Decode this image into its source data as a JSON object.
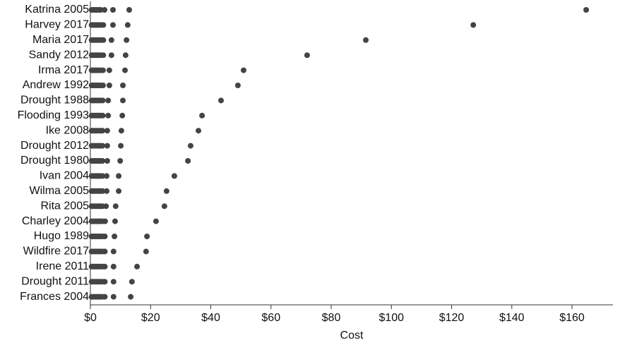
{
  "chart_data": {
    "type": "strip",
    "x_label": "Cost",
    "color": "#444444",
    "categories": [
      "Katrina 2005",
      "Harvey 2017",
      "Maria 2017",
      "Sandy 2012",
      "Irma 2017",
      "Andrew 1992",
      "Drought 1988",
      "Flooding 1993",
      "Ike 2008",
      "Drought 2012",
      "Drought 1980",
      "Ivan 2004",
      "Wilma 2005",
      "Rita 2005",
      "Charley 2004",
      "Hugo 1989",
      "Wildfire 2017",
      "Irene 2011",
      "Drought 2011",
      "Frances 2004"
    ],
    "values": [
      [
        0.4,
        0.9,
        1.4,
        1.9,
        2.4,
        2.9,
        3.4,
        4.7,
        7.5,
        12.9,
        164.7
      ],
      [
        0.4,
        0.9,
        1.4,
        1.9,
        2.4,
        2.9,
        3.4,
        4.3,
        7.5,
        12.4,
        127.2
      ],
      [
        0.4,
        0.9,
        1.4,
        1.9,
        2.4,
        2.9,
        3.4,
        4.3,
        7.0,
        12.0,
        91.5
      ],
      [
        0.4,
        0.9,
        1.4,
        1.9,
        2.4,
        2.9,
        3.4,
        4.3,
        7.0,
        11.7,
        72.0
      ],
      [
        0.4,
        0.9,
        1.4,
        1.9,
        2.4,
        2.9,
        3.4,
        4.2,
        6.3,
        11.5,
        50.9
      ],
      [
        0.4,
        0.9,
        1.4,
        1.9,
        2.4,
        2.9,
        3.4,
        4.2,
        6.3,
        10.8,
        49.0
      ],
      [
        0.4,
        0.9,
        1.4,
        1.9,
        2.4,
        2.9,
        3.4,
        4.1,
        5.9,
        10.8,
        43.4
      ],
      [
        0.4,
        0.9,
        1.4,
        1.9,
        2.4,
        2.9,
        3.4,
        4.1,
        5.9,
        10.6,
        37.1
      ],
      [
        0.4,
        0.9,
        1.4,
        1.9,
        2.4,
        2.9,
        3.4,
        4.0,
        5.6,
        10.3,
        35.9
      ],
      [
        0.4,
        0.9,
        1.4,
        1.9,
        2.4,
        2.9,
        3.4,
        4.0,
        5.6,
        10.1,
        33.3
      ],
      [
        0.4,
        0.9,
        1.4,
        1.9,
        2.4,
        2.9,
        3.4,
        4.0,
        5.6,
        9.9,
        32.4
      ],
      [
        0.4,
        0.9,
        1.4,
        1.9,
        2.4,
        2.9,
        3.4,
        4.0,
        5.4,
        9.4,
        27.9
      ],
      [
        0.4,
        0.9,
        1.4,
        1.9,
        2.4,
        2.9,
        3.4,
        4.0,
        5.4,
        9.4,
        25.3
      ],
      [
        0.4,
        0.9,
        1.4,
        1.9,
        2.4,
        2.9,
        3.4,
        4.0,
        5.2,
        8.4,
        24.6
      ],
      [
        0.4,
        0.9,
        1.4,
        1.9,
        2.4,
        2.9,
        3.4,
        4.0,
        4.9,
        8.2,
        21.8
      ],
      [
        0.4,
        0.9,
        1.4,
        1.9,
        2.4,
        2.9,
        3.4,
        4.0,
        4.8,
        8.0,
        18.8
      ],
      [
        0.4,
        0.9,
        1.4,
        1.9,
        2.4,
        2.9,
        3.4,
        4.0,
        4.8,
        7.7,
        18.5
      ],
      [
        0.4,
        0.9,
        1.4,
        1.9,
        2.4,
        2.9,
        3.4,
        4.0,
        4.8,
        7.7,
        15.5
      ],
      [
        0.4,
        0.9,
        1.4,
        1.9,
        2.4,
        2.9,
        3.4,
        4.0,
        4.8,
        7.7,
        13.8
      ],
      [
        0.4,
        0.9,
        1.4,
        1.9,
        2.4,
        2.9,
        3.4,
        4.0,
        4.8,
        7.7,
        13.4
      ]
    ],
    "xlim": [
      0,
      173.6
    ],
    "xticks": [
      {
        "value": 0,
        "label": "$0"
      },
      {
        "value": 20,
        "label": "$20"
      },
      {
        "value": 40,
        "label": "$40"
      },
      {
        "value": 60,
        "label": "$60"
      },
      {
        "value": 80,
        "label": "$80"
      },
      {
        "value": 100,
        "label": "$100"
      },
      {
        "value": 120,
        "label": "$120"
      },
      {
        "value": 140,
        "label": "$140"
      },
      {
        "value": 160,
        "label": "$160"
      }
    ]
  }
}
